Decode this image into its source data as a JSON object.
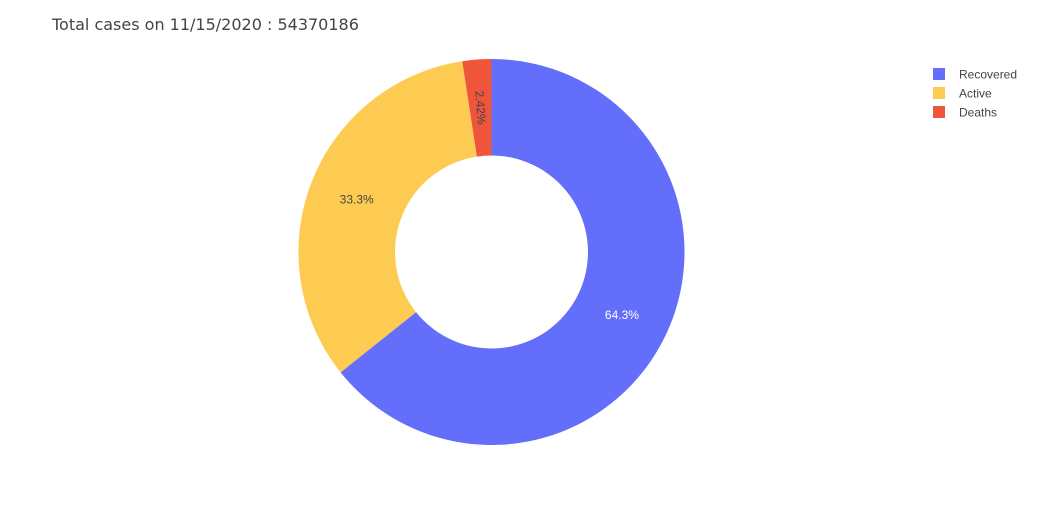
{
  "chart_data": {
    "type": "pie",
    "title": "Total cases on 11/15/2020 : 54370186",
    "hole": 0.5,
    "legend_position": "top-right",
    "slices": [
      {
        "label": "Recovered",
        "percent": 64.3,
        "percent_label": "64.3%",
        "color": "#636efa",
        "text_color": "#ffffff"
      },
      {
        "label": "Active",
        "percent": 33.3,
        "percent_label": "33.3%",
        "color": "#fecb52",
        "text_color": "#444444"
      },
      {
        "label": "Deaths",
        "percent": 2.42,
        "percent_label": "2.42%",
        "color": "#ef553b",
        "text_color": "#444444"
      }
    ]
  }
}
